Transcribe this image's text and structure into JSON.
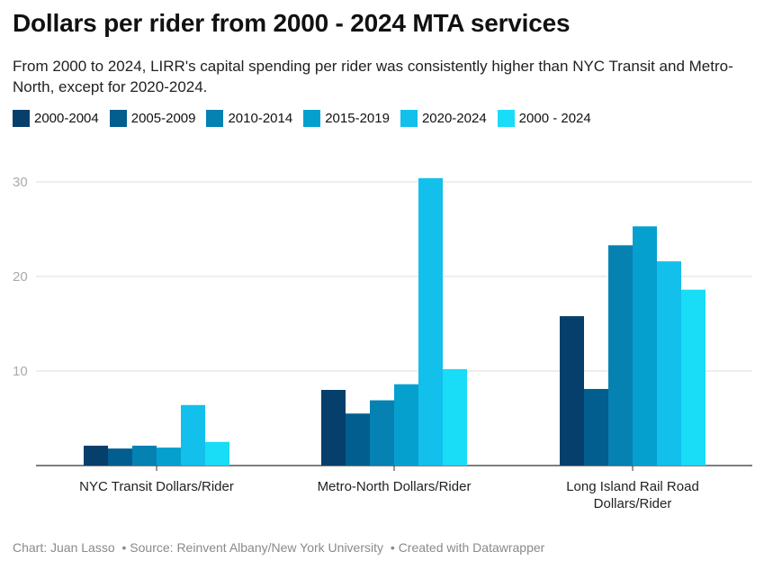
{
  "title": "Dollars per rider from 2000 - 2024 MTA services",
  "subtitle": "From 2000 to 2024, LIRR's capital spending per rider was consistently higher than NYC Transit and Metro-North, except for 2020-2024.",
  "footer": {
    "credit": "Chart: Juan Lasso",
    "source": "• Source: Reinvent Albany/New York University",
    "created": "• Created with Datawrapper"
  },
  "colors": [
    "#063f6b",
    "#015e8e",
    "#0581b2",
    "#06a0cf",
    "#13bfeb",
    "#19dcf7"
  ],
  "chart_data": {
    "type": "bar",
    "title": "Dollars per rider from 2000 - 2024 MTA services",
    "xlabel": "",
    "ylabel": "",
    "ylim": [
      0,
      30
    ],
    "yticks": [
      10,
      20,
      30
    ],
    "grid": true,
    "legend_position": "top-left",
    "categories": [
      [
        "NYC Transit Dollars/Rider"
      ],
      [
        "Metro-North Dollars/Rider"
      ],
      [
        "Long Island Rail Road",
        "Dollars/Rider"
      ]
    ],
    "series": [
      {
        "name": "2000-2004",
        "values": [
          2.1,
          8.0,
          15.8
        ]
      },
      {
        "name": "2005-2009",
        "values": [
          1.8,
          5.5,
          8.1
        ]
      },
      {
        "name": "2010-2014",
        "values": [
          2.1,
          6.9,
          23.3
        ]
      },
      {
        "name": "2015-2019",
        "values": [
          1.9,
          8.6,
          25.3
        ]
      },
      {
        "name": "2020-2024",
        "values": [
          6.4,
          30.4,
          21.6
        ]
      },
      {
        "name": "2000 - 2024",
        "values": [
          2.5,
          10.2,
          18.6
        ]
      }
    ]
  }
}
